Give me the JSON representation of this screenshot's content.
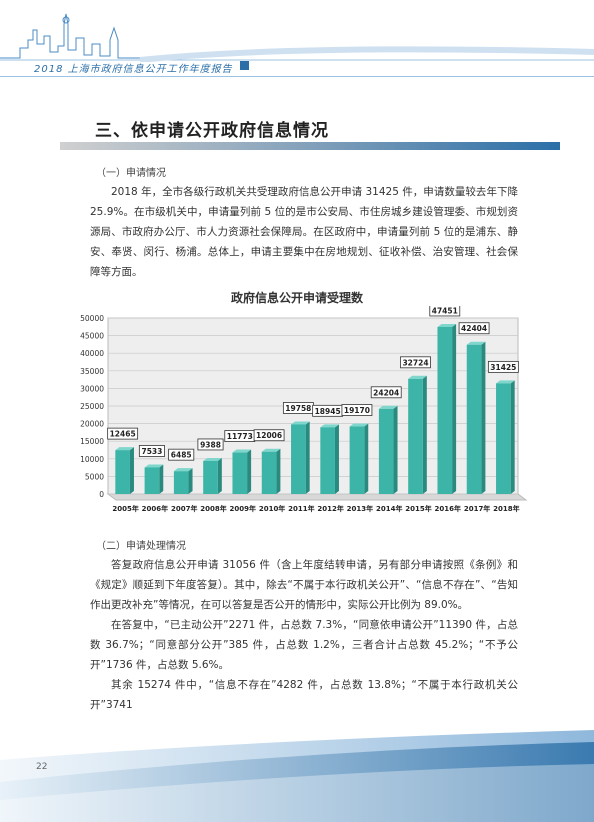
{
  "header": {
    "title": "2018 上海市政府信息公开工作年度报告"
  },
  "section": {
    "title": "三、依申请公开政府信息情况"
  },
  "sub1": {
    "heading": "（一）申请情况",
    "para": "2018 年，全市各级行政机关共受理政府信息公开申请 31425 件，申请数量较去年下降 25.9%。在市级机关中，申请量列前 5 位的是市公安局、市住房城乡建设管理委、市规划资源局、市政府办公厅、市人力资源社会保障局。在区政府中，申请量列前 5 位的是浦东、静安、奉贤、闵行、杨浦。总体上，申请主要集中在房地规划、征收补偿、治安管理、社会保障等方面。"
  },
  "chart_data": {
    "type": "bar",
    "title": "政府信息公开申请受理数",
    "categories": [
      "2005年",
      "2006年",
      "2007年",
      "2008年",
      "2009年",
      "2010年",
      "2011年",
      "2012年",
      "2013年",
      "2014年",
      "2015年",
      "2016年",
      "2017年",
      "2018年"
    ],
    "values": [
      12465,
      7533,
      6485,
      9388,
      11773,
      12006,
      19758,
      18945,
      19170,
      24204,
      32724,
      47451,
      42404,
      31425
    ],
    "ylim": [
      0,
      50000
    ],
    "yticks": [
      "0",
      "5000",
      "10000",
      "15000",
      "20000",
      "25000",
      "30000",
      "35000",
      "40000",
      "45000",
      "50000"
    ],
    "bar_color": "#3cb5a8",
    "grid": true,
    "xlabel": "",
    "ylabel": ""
  },
  "sub2": {
    "heading": "（二）申请处理情况",
    "para1": "答复政府信息公开申请 31056 件（含上年度结转申请，另有部分申请按照《条例》和《规定》顺延到下年度答复）。其中，除去“不属于本行政机关公开”、“信息不存在”、“告知作出更改补充”等情况，在可以答复是否公开的情形中，实际公开比例为 89.0%。",
    "para2": "在答复中，“已主动公开”2271 件，占总数 7.3%，“同意依申请公开”11390 件，占总数 36.7%；“同意部分公开”385 件，占总数 1.2%，三者合计占总数 45.2%；“不予公开”1736 件，占总数 5.6%。",
    "para3": "其余 15274 件中，“信息不存在”4282 件，占总数 13.8%；“不属于本行政机关公开”3741"
  },
  "footer": {
    "page_number": "22"
  },
  "colors": {
    "accent_blue": "#2b6fa8",
    "bar_teal": "#3cb5a8"
  }
}
